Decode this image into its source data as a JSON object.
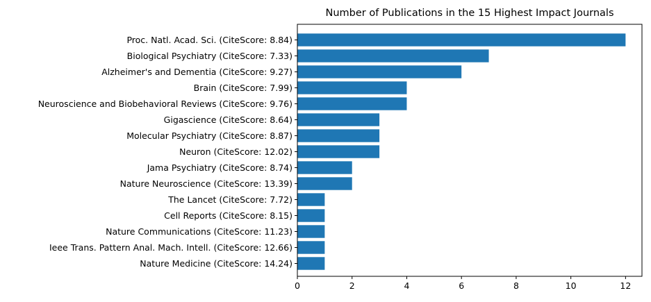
{
  "chart_data": {
    "type": "bar",
    "orientation": "horizontal",
    "title": "Number of Publications in the 15 Highest Impact Journals",
    "xlabel": "",
    "ylabel": "",
    "xlim": [
      0,
      12.6
    ],
    "xticks": [
      0,
      2,
      4,
      6,
      8,
      10,
      12
    ],
    "grid": false,
    "bar_color": "#1f77b4",
    "categories": [
      "Proc. Natl. Acad. Sci. (CiteScore: 8.84)",
      "Biological Psychiatry (CiteScore: 7.33)",
      "Alzheimer's and Dementia (CiteScore: 9.27)",
      "Brain (CiteScore: 7.99)",
      "Neuroscience and Biobehavioral Reviews (CiteScore: 9.76)",
      "Gigascience (CiteScore: 8.64)",
      "Molecular Psychiatry (CiteScore: 8.87)",
      "Neuron (CiteScore: 12.02)",
      "Jama Psychiatry (CiteScore: 8.74)",
      "Nature Neuroscience (CiteScore: 13.39)",
      "The Lancet (CiteScore: 7.72)",
      "Cell Reports (CiteScore: 8.15)",
      "Nature Communications (CiteScore: 11.23)",
      "Ieee Trans. Pattern Anal. Mach. Intell. (CiteScore: 12.66)",
      "Nature Medicine (CiteScore: 14.24)"
    ],
    "values": [
      12,
      7,
      6,
      4,
      4,
      3,
      3,
      3,
      2,
      2,
      1,
      1,
      1,
      1,
      1
    ]
  }
}
